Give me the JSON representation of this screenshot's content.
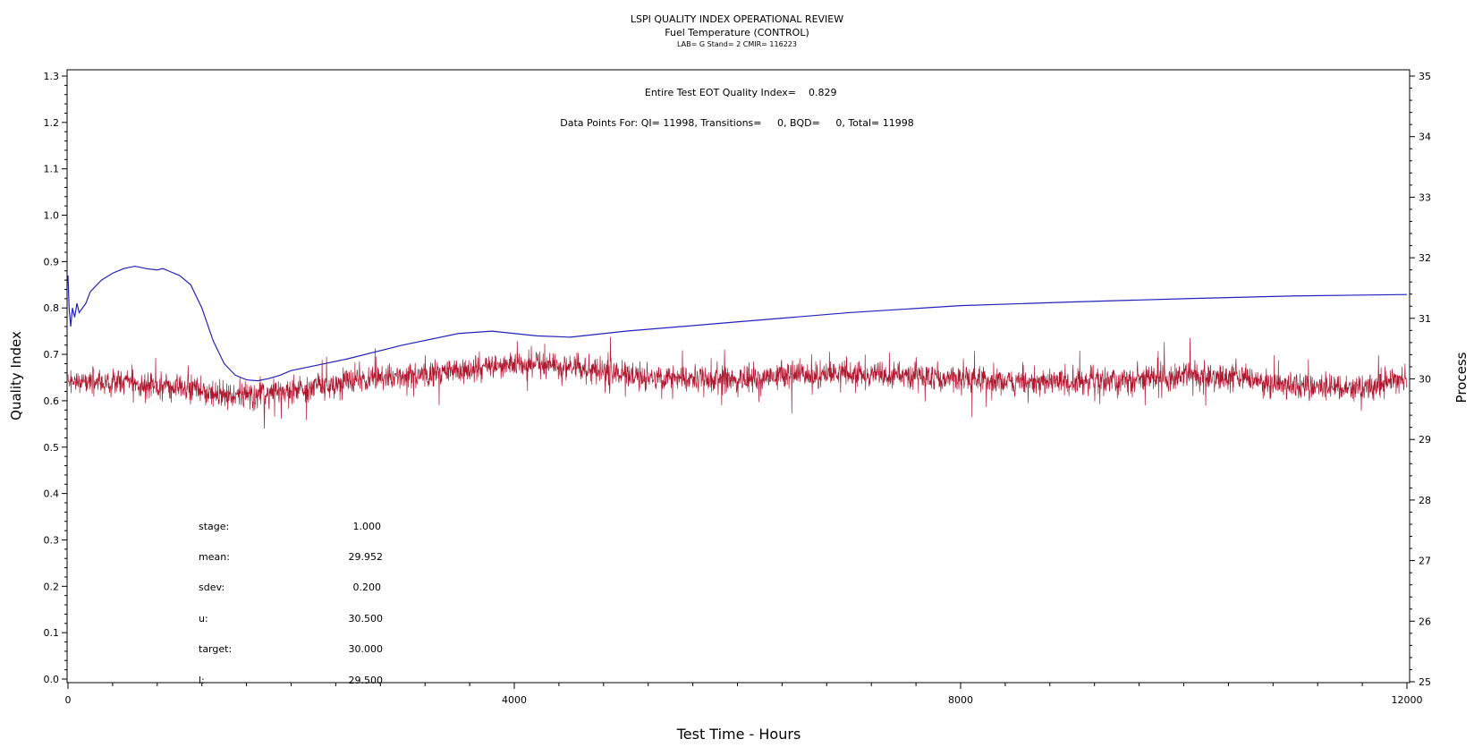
{
  "chart_data": {
    "type": "line",
    "title": "LSPI QUALITY INDEX OPERATIONAL REVIEW",
    "subtitle": "Fuel Temperature (CONTROL)",
    "subtitle2": "LAB= G Stand= 2 CMIR= 116223",
    "annotation_qi_label": "Entire Test EOT Quality Index=",
    "annotation_qi_value": "0.829",
    "annotation_points": "Data Points For: QI= 11998, Transitions=     0, BQD=     0, Total= 11998",
    "xlabel": "Test Time - Hours",
    "ylabel_left": "Quality Index",
    "ylabel_right": "Process",
    "xlim": [
      0,
      12000
    ],
    "ylim_left": [
      0,
      1.3
    ],
    "ylim_right": [
      25,
      35
    ],
    "x_ticks": [
      0,
      4000,
      8000,
      12000
    ],
    "x_tick_labels": [
      "0",
      "4000",
      "8000",
      "12000"
    ],
    "y_left_ticks": [
      0.0,
      0.1,
      0.2,
      0.3,
      0.4,
      0.5,
      0.6,
      0.7,
      0.8,
      0.9,
      1.0,
      1.1,
      1.2,
      1.3
    ],
    "y_left_tick_labels": [
      "0.0",
      "0.1",
      "0.2",
      "0.3",
      "0.4",
      "0.5",
      "0.6",
      "0.7",
      "0.8",
      "0.9",
      "1.0",
      "1.1",
      "1.2",
      "1.3"
    ],
    "y_right_ticks": [
      25,
      26,
      27,
      28,
      29,
      30,
      31,
      32,
      33,
      34,
      35
    ],
    "y_right_tick_labels": [
      "25",
      "26",
      "27",
      "28",
      "29",
      "30",
      "31",
      "32",
      "33",
      "34",
      "35"
    ],
    "stats": [
      {
        "label": "stage:",
        "value": "1.000"
      },
      {
        "label": "mean:",
        "value": "29.952"
      },
      {
        "label": "sdev:",
        "value": "0.200"
      },
      {
        "label": "u:",
        "value": "30.500"
      },
      {
        "label": "target:",
        "value": "30.000"
      },
      {
        "label": "l:",
        "value": "29.500"
      }
    ],
    "series": [
      {
        "axis": "left",
        "color": "#2222bb",
        "x": [
          0,
          10,
          25,
          40,
          60,
          80,
          100,
          130,
          160,
          200,
          300,
          400,
          500,
          600,
          700,
          800,
          850,
          900,
          1000,
          1100,
          1200,
          1300,
          1400,
          1500,
          1600,
          1700,
          1800,
          1900,
          2000,
          2200,
          2500,
          3000,
          3500,
          3800,
          4000,
          4200,
          4500,
          5000,
          6000,
          7000,
          8000,
          9000,
          10000,
          11000,
          12000
        ],
        "values": [
          0.87,
          0.8,
          0.76,
          0.8,
          0.78,
          0.81,
          0.79,
          0.8,
          0.81,
          0.835,
          0.86,
          0.875,
          0.885,
          0.89,
          0.885,
          0.882,
          0.885,
          0.88,
          0.87,
          0.85,
          0.8,
          0.73,
          0.68,
          0.655,
          0.645,
          0.643,
          0.648,
          0.655,
          0.665,
          0.675,
          0.69,
          0.72,
          0.745,
          0.75,
          0.745,
          0.74,
          0.737,
          0.75,
          0.77,
          0.79,
          0.805,
          0.813,
          0.82,
          0.826,
          0.829
        ]
      },
      {
        "axis": "right",
        "color": "#b01830",
        "mean_x": [
          0,
          500,
          1000,
          1500,
          2000,
          2500,
          3000,
          3500,
          4000,
          4500,
          5000,
          5500,
          6000,
          6500,
          7000,
          7500,
          8000,
          8500,
          9000,
          9500,
          10000,
          10500,
          11000,
          11500,
          12000
        ],
        "mean_values": [
          29.95,
          29.95,
          29.85,
          29.7,
          29.8,
          29.95,
          30.05,
          30.15,
          30.25,
          30.2,
          30.05,
          30.0,
          30.0,
          30.05,
          30.1,
          30.05,
          30.0,
          29.95,
          29.95,
          30.0,
          30.05,
          30.0,
          29.9,
          29.85,
          30.0
        ],
        "sdev": 0.2
      }
    ]
  }
}
